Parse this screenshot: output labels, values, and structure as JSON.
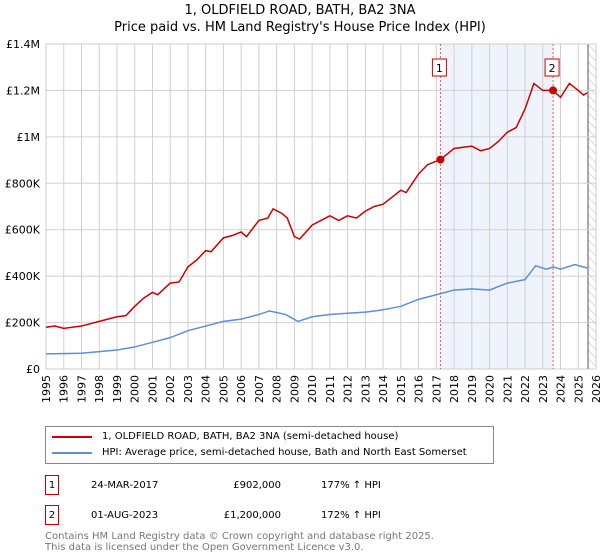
{
  "chart_data": {
    "type": "line",
    "title": "1, OLDFIELD ROAD, BATH, BA2 3NA",
    "subtitle": "Price paid vs. HM Land Registry's House Price Index (HPI)",
    "xlim": [
      1995,
      2026
    ],
    "ylim": [
      0,
      1400000
    ],
    "x_ticks": [
      "1995",
      "1996",
      "1997",
      "1998",
      "1999",
      "2000",
      "2001",
      "2002",
      "2003",
      "2004",
      "2005",
      "2006",
      "2007",
      "2008",
      "2009",
      "2010",
      "2011",
      "2012",
      "2013",
      "2014",
      "2015",
      "2016",
      "2017",
      "2018",
      "2019",
      "2020",
      "2021",
      "2022",
      "2023",
      "2024",
      "2025",
      "2026"
    ],
    "y_ticks": [
      {
        "v": 0,
        "label": "£0"
      },
      {
        "v": 200000,
        "label": "£200K"
      },
      {
        "v": 400000,
        "label": "£400K"
      },
      {
        "v": 600000,
        "label": "£600K"
      },
      {
        "v": 800000,
        "label": "£800K"
      },
      {
        "v": 1000000,
        "label": "£1M"
      },
      {
        "v": 1200000,
        "label": "£1.2M"
      },
      {
        "v": 1400000,
        "label": "£1.4M"
      }
    ],
    "grid": true,
    "series": [
      {
        "name": "1, OLDFIELD ROAD, BATH, BA2 3NA (semi-detached house)",
        "color": "#cc0000",
        "x": [
          1995,
          1995.5,
          1996,
          1997,
          1998,
          1999,
          1999.5,
          2000,
          2000.5,
          2001,
          2001.3,
          2002,
          2002.5,
          2003,
          2003.5,
          2004,
          2004.3,
          2005,
          2005.5,
          2006,
          2006.3,
          2007,
          2007.5,
          2007.8,
          2008.3,
          2008.6,
          2009,
          2009.3,
          2010,
          2010.5,
          2011,
          2011.5,
          2012,
          2012.5,
          2013,
          2013.5,
          2014,
          2015,
          2015.3,
          2016,
          2016.5,
          2017.23,
          2018,
          2019,
          2019.5,
          2020,
          2020.5,
          2021,
          2021.5,
          2022,
          2022.5,
          2023,
          2023.58,
          2024,
          2024.5,
          2025,
          2025.3,
          2025.5
        ],
        "y": [
          180000,
          185000,
          175000,
          185000,
          205000,
          225000,
          230000,
          270000,
          305000,
          330000,
          320000,
          370000,
          375000,
          440000,
          470000,
          510000,
          505000,
          565000,
          575000,
          590000,
          570000,
          640000,
          650000,
          690000,
          670000,
          650000,
          570000,
          560000,
          620000,
          640000,
          660000,
          640000,
          660000,
          650000,
          680000,
          700000,
          710000,
          770000,
          760000,
          840000,
          880000,
          902000,
          950000,
          960000,
          940000,
          950000,
          980000,
          1020000,
          1040000,
          1120000,
          1230000,
          1200000,
          1200000,
          1170000,
          1230000,
          1200000,
          1180000,
          1190000
        ]
      },
      {
        "name": "HPI: Average price, semi-detached house, Bath and North East Somerset",
        "color": "#5b8fd6",
        "x": [
          1995,
          1997,
          1998,
          1999,
          2000,
          2001,
          2002,
          2003,
          2004,
          2005,
          2006,
          2007,
          2007.6,
          2008.5,
          2009.2,
          2010,
          2011,
          2012,
          2013,
          2014,
          2015,
          2016,
          2017,
          2018,
          2019,
          2020,
          2021,
          2022,
          2022.6,
          2023.2,
          2023.6,
          2024,
          2024.8,
          2025.5
        ],
        "y": [
          65000,
          68000,
          75000,
          82000,
          95000,
          115000,
          135000,
          165000,
          185000,
          205000,
          215000,
          235000,
          250000,
          235000,
          205000,
          225000,
          235000,
          240000,
          245000,
          255000,
          270000,
          300000,
          320000,
          340000,
          345000,
          340000,
          370000,
          385000,
          445000,
          430000,
          440000,
          430000,
          450000,
          435000
        ]
      }
    ],
    "sales": [
      {
        "label": "1",
        "x": 2017.23,
        "y": 902000,
        "date": "24-MAR-2017",
        "price": "£902,000",
        "hpi": "177% ↑ HPI"
      },
      {
        "label": "2",
        "x": 2023.58,
        "y": 1200000,
        "date": "01-AUG-2023",
        "price": "£1,200,000",
        "hpi": "172% ↑ HPI"
      }
    ],
    "forecast_start": 2025.55,
    "legend_placement": "below"
  },
  "footer": [
    "Contains HM Land Registry data © Crown copyright and database right 2025.",
    "This data is licensed under the Open Government Licence v3.0."
  ]
}
